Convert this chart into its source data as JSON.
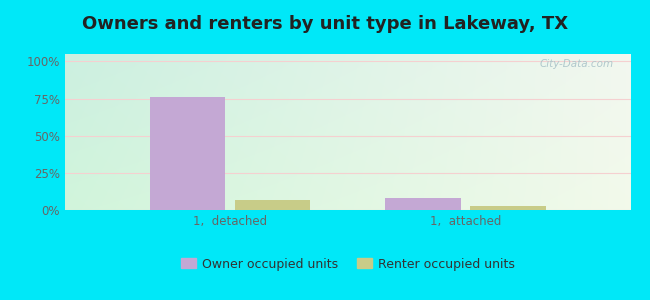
{
  "title": "Owners and renters by unit type in Lakeway, TX",
  "categories": [
    "1,  detached",
    "1,  attached"
  ],
  "owner_values": [
    76,
    8
  ],
  "renter_values": [
    7,
    3
  ],
  "owner_color": "#c4a8d4",
  "renter_color": "#c8cc88",
  "yticks": [
    0,
    25,
    50,
    75,
    100
  ],
  "ytick_labels": [
    "0%",
    "25%",
    "50%",
    "75%",
    "100%"
  ],
  "ylim": [
    0,
    105
  ],
  "bg_outer": "#00e8f8",
  "watermark": "City-Data.com",
  "legend_owner": "Owner occupied units",
  "legend_renter": "Renter occupied units",
  "bar_width": 0.32,
  "title_fontsize": 13,
  "tick_fontsize": 8.5,
  "legend_fontsize": 9,
  "grad_tl": [
    0.8,
    0.94,
    0.88
  ],
  "grad_tr": [
    0.95,
    0.97,
    0.94
  ],
  "grad_bl": [
    0.82,
    0.96,
    0.86
  ],
  "grad_br": [
    0.95,
    0.98,
    0.92
  ]
}
